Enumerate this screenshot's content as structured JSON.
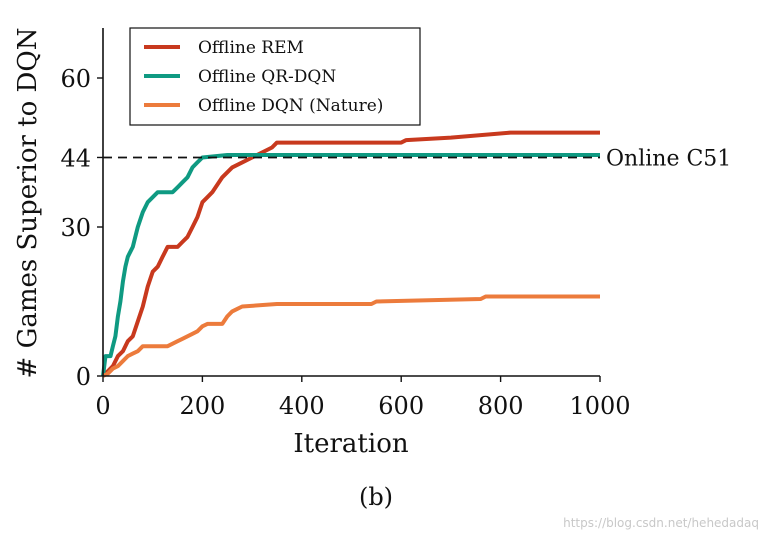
{
  "chart_data": {
    "type": "line",
    "title": "",
    "xlabel": "Iteration",
    "ylabel": "# Games Superior to DQN",
    "xlim": [
      0,
      1000
    ],
    "ylim": [
      0,
      70
    ],
    "x_ticks": [
      "0",
      "200",
      "400",
      "600",
      "800",
      "1000"
    ],
    "y_ticks": [
      "0",
      "30",
      "44",
      "60"
    ],
    "grid": false,
    "legend_position": "top-left",
    "reference_line": {
      "label": "Online C51",
      "y": 44,
      "style": "dashed",
      "color": "#111111"
    },
    "series": [
      {
        "name": "Offline REM",
        "color": "#c8391e",
        "points": [
          [
            0,
            0
          ],
          [
            10,
            1
          ],
          [
            20,
            2
          ],
          [
            30,
            4
          ],
          [
            40,
            5
          ],
          [
            50,
            7
          ],
          [
            60,
            8
          ],
          [
            70,
            11
          ],
          [
            80,
            14
          ],
          [
            90,
            18
          ],
          [
            100,
            21
          ],
          [
            110,
            22
          ],
          [
            120,
            24
          ],
          [
            130,
            26
          ],
          [
            150,
            26
          ],
          [
            160,
            27
          ],
          [
            170,
            28
          ],
          [
            180,
            30
          ],
          [
            190,
            32
          ],
          [
            200,
            35
          ],
          [
            210,
            36
          ],
          [
            220,
            37
          ],
          [
            240,
            40
          ],
          [
            260,
            42
          ],
          [
            280,
            43
          ],
          [
            300,
            44
          ],
          [
            320,
            45
          ],
          [
            340,
            46
          ],
          [
            350,
            47
          ],
          [
            600,
            47
          ],
          [
            610,
            47.5
          ],
          [
            700,
            48
          ],
          [
            820,
            49
          ],
          [
            1000,
            49
          ]
        ]
      },
      {
        "name": "Offline QR-DQN",
        "color": "#0f9a82",
        "points": [
          [
            0,
            0
          ],
          [
            5,
            4
          ],
          [
            15,
            4
          ],
          [
            20,
            6
          ],
          [
            25,
            8
          ],
          [
            30,
            12
          ],
          [
            35,
            15
          ],
          [
            40,
            19
          ],
          [
            45,
            22
          ],
          [
            50,
            24
          ],
          [
            55,
            25
          ],
          [
            60,
            26
          ],
          [
            65,
            28
          ],
          [
            70,
            30
          ],
          [
            80,
            33
          ],
          [
            90,
            35
          ],
          [
            100,
            36
          ],
          [
            110,
            37
          ],
          [
            140,
            37
          ],
          [
            150,
            38
          ],
          [
            160,
            39
          ],
          [
            170,
            40
          ],
          [
            180,
            42
          ],
          [
            190,
            43
          ],
          [
            200,
            44
          ],
          [
            250,
            44.5
          ],
          [
            1000,
            44.5
          ]
        ]
      },
      {
        "name": "Offline DQN (Nature)",
        "color": "#ec7b3c",
        "points": [
          [
            0,
            0
          ],
          [
            10,
            0.5
          ],
          [
            20,
            1.5
          ],
          [
            30,
            2
          ],
          [
            40,
            3
          ],
          [
            50,
            4
          ],
          [
            60,
            4.5
          ],
          [
            70,
            5
          ],
          [
            80,
            6
          ],
          [
            130,
            6
          ],
          [
            140,
            6.5
          ],
          [
            150,
            7
          ],
          [
            160,
            7.5
          ],
          [
            170,
            8
          ],
          [
            180,
            8.5
          ],
          [
            190,
            9
          ],
          [
            200,
            10
          ],
          [
            210,
            10.5
          ],
          [
            240,
            10.5
          ],
          [
            250,
            12
          ],
          [
            260,
            13
          ],
          [
            270,
            13.5
          ],
          [
            280,
            14
          ],
          [
            350,
            14.5
          ],
          [
            540,
            14.5
          ],
          [
            550,
            15
          ],
          [
            760,
            15.5
          ],
          [
            770,
            16
          ],
          [
            1000,
            16
          ]
        ]
      }
    ]
  },
  "caption": "(b)",
  "watermark": "https://blog.csdn.net/hehedadaq"
}
